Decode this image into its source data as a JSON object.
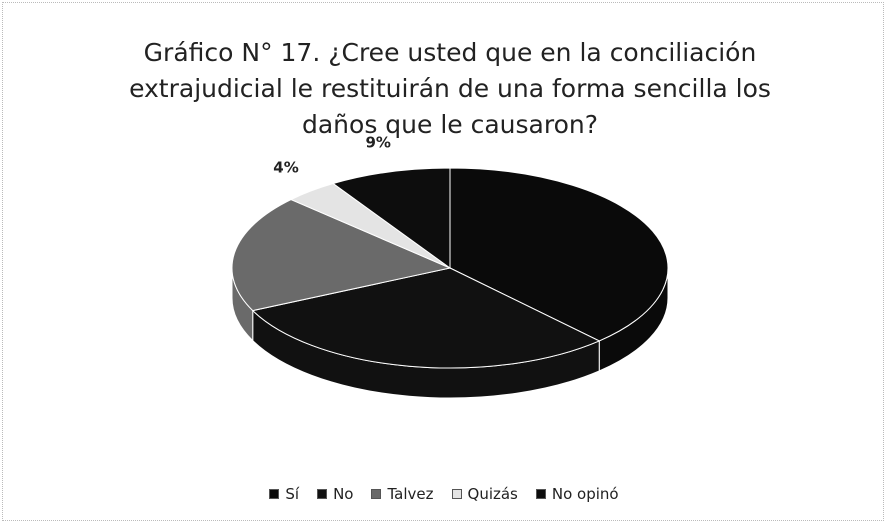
{
  "chart_data": {
    "type": "pie",
    "title": "Gráfico N° 17. ¿Cree usted que en la conciliación extrajudicial le restituirán de una forma sencilla los daños que le causaron?",
    "categories": [
      "Sí",
      "No",
      "Talvez",
      "Quizás",
      "No opinó"
    ],
    "values": [
      38,
      30,
      19,
      4,
      9
    ],
    "value_labels": [
      null,
      null,
      null,
      "4%",
      "9%"
    ],
    "colors": [
      "#0a0a0a",
      "#111111",
      "#6a6a6a",
      "#e4e4e4",
      "#0d0d0d"
    ],
    "legend": "bottom"
  }
}
